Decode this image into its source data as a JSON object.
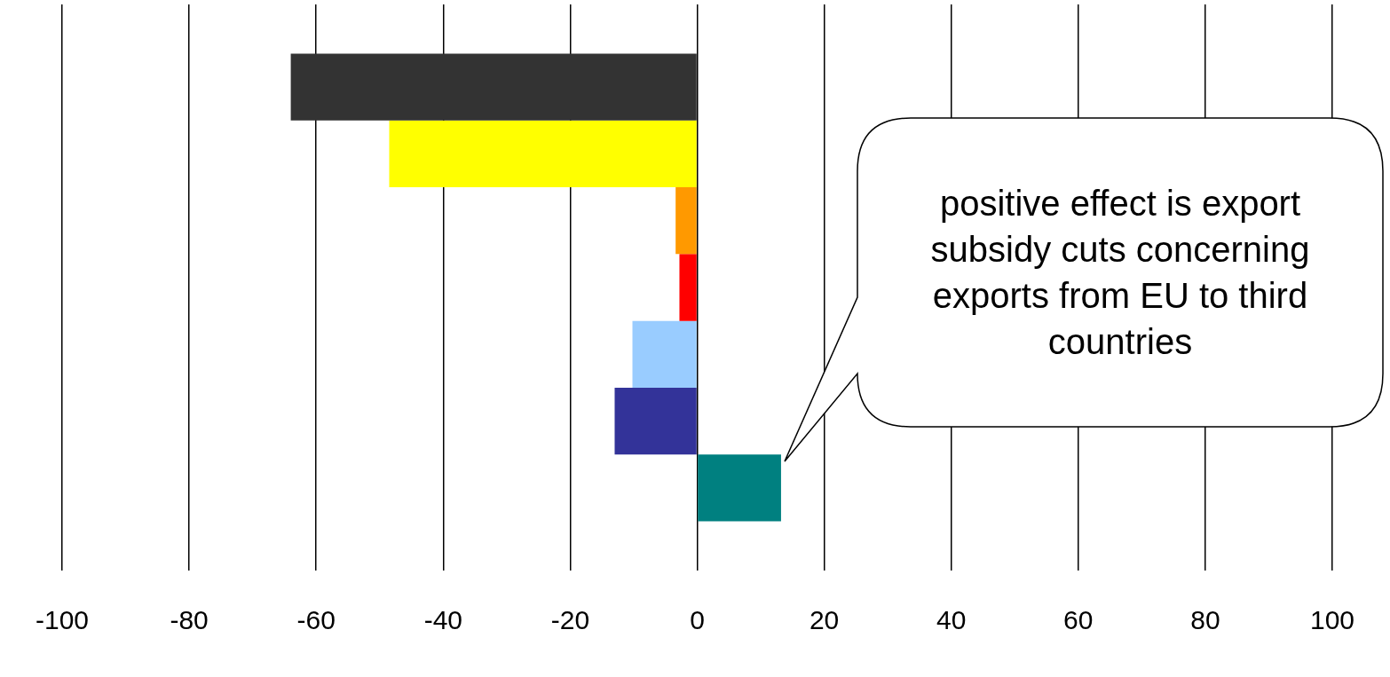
{
  "chart_data": {
    "type": "bar",
    "orientation": "horizontal",
    "categories": [
      null
    ],
    "series": [
      {
        "color": "#333333",
        "values": [
          -64
        ]
      },
      {
        "color": "#ffff00",
        "values": [
          -48.5
        ]
      },
      {
        "color": "#ff9900",
        "values": [
          -3.4
        ]
      },
      {
        "color": "#ff0000",
        "values": [
          -2.8
        ]
      },
      {
        "color": "#99ccff",
        "values": [
          -10.2
        ]
      },
      {
        "color": "#333399",
        "values": [
          -13
        ]
      },
      {
        "color": "#008080",
        "values": [
          13.2
        ]
      }
    ],
    "xlim": [
      -100,
      100
    ],
    "xticks": [
      -100,
      -80,
      -60,
      -40,
      -20,
      0,
      20,
      40,
      60,
      80,
      100
    ],
    "grid": "x",
    "legend": false,
    "annotations": [
      "positive effect is export subsidy cuts concerning exports from EU to third countries"
    ]
  }
}
